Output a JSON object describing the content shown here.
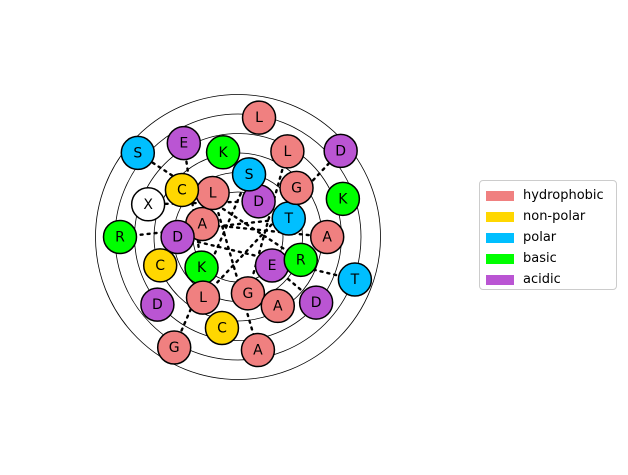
{
  "legend": [
    {
      "label": "hydrophobic",
      "color": "#F08080"
    },
    {
      "label": "non-polar",
      "color": "#FFD700"
    },
    {
      "label": "polar",
      "color": "#00BFFF"
    },
    {
      "label": "basic",
      "color": "#00FF00"
    },
    {
      "label": "acidic",
      "color": "#BA55D3"
    }
  ],
  "ring_count": 6,
  "nodes": [
    {
      "letter": "A",
      "cls": "hydrophobic"
    },
    {
      "letter": "D",
      "cls": "acidic"
    },
    {
      "letter": "E",
      "cls": "acidic"
    },
    {
      "letter": "K",
      "cls": "basic"
    },
    {
      "letter": "L",
      "cls": "hydrophobic"
    },
    {
      "letter": "T",
      "cls": "polar"
    },
    {
      "letter": "G",
      "cls": "hydrophobic"
    },
    {
      "letter": "D",
      "cls": "acidic"
    },
    {
      "letter": "S",
      "cls": "polar"
    },
    {
      "letter": "R",
      "cls": "basic"
    },
    {
      "letter": "L",
      "cls": "hydrophobic"
    },
    {
      "letter": "C",
      "cls": "non-polar"
    },
    {
      "letter": "G",
      "cls": "hydrophobic"
    },
    {
      "letter": "A",
      "cls": "hydrophobic"
    },
    {
      "letter": "C",
      "cls": "non-polar"
    },
    {
      "letter": "K",
      "cls": "basic"
    },
    {
      "letter": "A",
      "cls": "hydrophobic"
    },
    {
      "letter": "C",
      "cls": "non-polar"
    },
    {
      "letter": "X",
      "cls": "none"
    },
    {
      "letter": "L",
      "cls": "hydrophobic"
    },
    {
      "letter": "D",
      "cls": "acidic"
    },
    {
      "letter": "D",
      "cls": "acidic"
    },
    {
      "letter": "E",
      "cls": "acidic"
    },
    {
      "letter": "K",
      "cls": "basic"
    },
    {
      "letter": "A",
      "cls": "hydrophobic"
    },
    {
      "letter": "R",
      "cls": "basic"
    },
    {
      "letter": "L",
      "cls": "hydrophobic"
    },
    {
      "letter": "T",
      "cls": "polar"
    },
    {
      "letter": "G",
      "cls": "hydrophobic"
    },
    {
      "letter": "S",
      "cls": "polar"
    },
    {
      "letter": "D",
      "cls": "acidic"
    }
  ],
  "dotted_links": [
    [
      0,
      16
    ],
    [
      1,
      18
    ],
    [
      2,
      20
    ],
    [
      3,
      22
    ],
    [
      4,
      24
    ],
    [
      5,
      25
    ],
    [
      6,
      19
    ],
    [
      7,
      27
    ],
    [
      8,
      28
    ],
    [
      9,
      29
    ],
    [
      10,
      30
    ]
  ]
}
